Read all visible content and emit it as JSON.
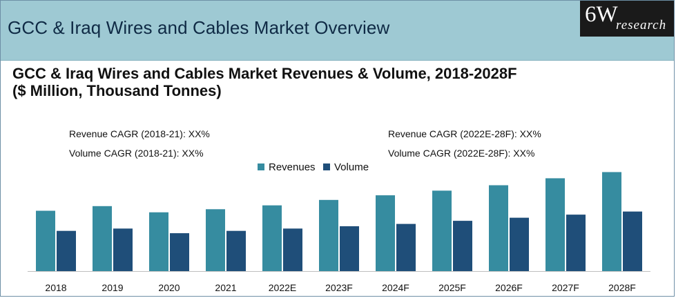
{
  "header": {
    "title": "GCC & Iraq Wires and Cables Market Overview",
    "logo_main": "6W",
    "logo_sub": "research"
  },
  "chart_title": {
    "line1": "GCC & Iraq Wires and Cables Market Revenues & Volume, 2018-2028F",
    "line2": "($ Million, Thousand Tonnes)"
  },
  "annotations": {
    "rev_cagr_past": "Revenue CAGR (2018-21):  XX%",
    "vol_cagr_past": "Volume CAGR (2018-21):  XX%",
    "rev_cagr_fore": "Revenue CAGR (2022E-28F):  XX%",
    "vol_cagr_fore": "Volume CAGR (2022E-28F):  XX%"
  },
  "colors": {
    "header_bg": "#9ec9d3",
    "revenues": "#368ca0",
    "volume": "#1f4e79"
  },
  "chart_data": {
    "type": "bar",
    "categories": [
      "2018",
      "2019",
      "2020",
      "2021",
      "2022E",
      "2023F",
      "2024F",
      "2025F",
      "2026F",
      "2027F",
      "2028F"
    ],
    "series": [
      {
        "name": "Revenues",
        "values": [
          78,
          84,
          76,
          80,
          85,
          92,
          98,
          104,
          111,
          120,
          128
        ]
      },
      {
        "name": "Volume",
        "values": [
          52,
          55,
          49,
          52,
          55,
          58,
          61,
          65,
          69,
          73,
          77
        ]
      }
    ],
    "ylim": [
      0,
      140
    ],
    "legend": "top-center",
    "grid": false,
    "title": "GCC & Iraq Wires and Cables Market Revenues & Volume, 2018-2028F",
    "xlabel": "",
    "ylabel": ""
  }
}
